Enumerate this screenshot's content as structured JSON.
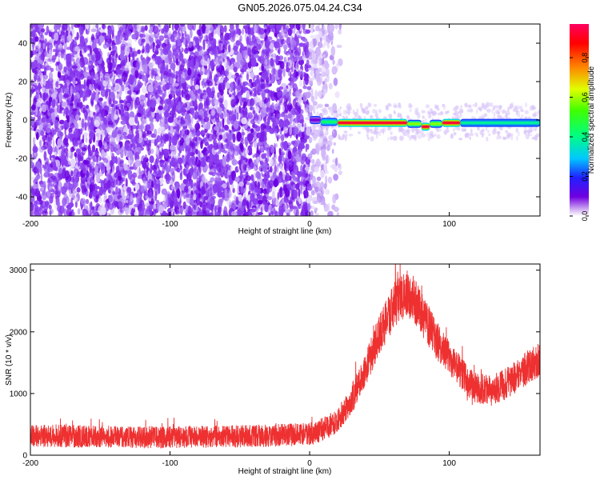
{
  "figure": {
    "title": "GN05.2026.075.04.24.C34"
  },
  "chart_data": [
    {
      "type": "heatmap",
      "xlabel": "Height of straight line (km)",
      "ylabel": "Frequency (Hz)",
      "xlim": [
        -200,
        165
      ],
      "ylim": [
        -50,
        50
      ],
      "xticks": [
        -200,
        -100,
        0,
        100
      ],
      "yticks": [
        -40,
        -20,
        0,
        20,
        40
      ],
      "colorbar": {
        "label": "Normalized spectral amplitude",
        "range": [
          0,
          0.97
        ],
        "ticks": [
          0.0,
          0.2,
          0.4,
          0.6,
          0.8
        ],
        "colors": [
          "#ffffff",
          "#b080f0",
          "#7000e0",
          "#2020ff",
          "#00e0ff",
          "#00ff40",
          "#d0ff00",
          "#ff9000",
          "#ff0000",
          "#ff0060"
        ]
      },
      "noise_region": {
        "x": [
          -200,
          22
        ],
        "y": [
          -50,
          50
        ],
        "amplitude": 0.1
      },
      "line_segments": [
        {
          "x": [
            0,
            8
          ],
          "y": 0,
          "amplitude": 0.1
        },
        {
          "x": [
            8,
            20
          ],
          "y": -1,
          "amplitude": 0.45
        },
        {
          "x": [
            20,
            70
          ],
          "y": -1.5,
          "amplitude": 0.95
        },
        {
          "x": [
            70,
            80
          ],
          "y": -2,
          "amplitude": 0.6
        },
        {
          "x": [
            80,
            86
          ],
          "y": -3.5,
          "amplitude": 0.95
        },
        {
          "x": [
            86,
            95
          ],
          "y": -2,
          "amplitude": 0.6
        },
        {
          "x": [
            95,
            108
          ],
          "y": -1.5,
          "amplitude": 0.95
        },
        {
          "x": [
            108,
            165
          ],
          "y": -1.5,
          "amplitude": 0.4
        }
      ]
    },
    {
      "type": "line",
      "xlabel": "Height of straight line (km)",
      "ylabel": "SNR (10 * v/v)",
      "xlim": [
        -200,
        165
      ],
      "ylim": [
        0,
        3100
      ],
      "xticks": [
        -200,
        -100,
        0,
        100
      ],
      "yticks": [
        0,
        1000,
        2000,
        3000
      ],
      "color": "#ee3030",
      "x": [
        -200,
        -175,
        -150,
        -125,
        -100,
        -75,
        -50,
        -25,
        0,
        10,
        20,
        30,
        40,
        50,
        60,
        65,
        70,
        75,
        80,
        85,
        90,
        100,
        110,
        120,
        130,
        140,
        150,
        160,
        165
      ],
      "y": [
        320,
        310,
        300,
        290,
        290,
        300,
        305,
        320,
        340,
        420,
        560,
        900,
        1400,
        1950,
        2400,
        2560,
        2620,
        2520,
        2300,
        2100,
        1900,
        1600,
        1280,
        1080,
        1050,
        1150,
        1300,
        1500,
        1560
      ],
      "noise_amplitude": 260
    }
  ]
}
